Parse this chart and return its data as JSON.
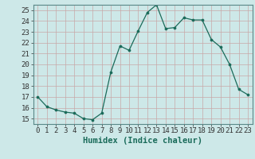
{
  "x": [
    0,
    1,
    2,
    3,
    4,
    5,
    6,
    7,
    8,
    9,
    10,
    11,
    12,
    13,
    14,
    15,
    16,
    17,
    18,
    19,
    20,
    21,
    22,
    23
  ],
  "y": [
    17.0,
    16.1,
    15.8,
    15.6,
    15.5,
    15.0,
    14.9,
    15.5,
    19.3,
    21.7,
    21.3,
    23.1,
    24.8,
    25.5,
    23.3,
    23.4,
    24.3,
    24.1,
    24.1,
    22.3,
    21.6,
    20.0,
    17.7,
    17.2
  ],
  "line_color": "#1a6b5a",
  "marker": "o",
  "marker_size": 2.2,
  "bg_color": "#cde8e8",
  "grid_major_color": "#b8d0d0",
  "grid_minor_color": "#d8ecec",
  "xlabel": "Humidex (Indice chaleur)",
  "xlim": [
    -0.5,
    23.5
  ],
  "ylim": [
    14.5,
    25.5
  ],
  "yticks": [
    15,
    16,
    17,
    18,
    19,
    20,
    21,
    22,
    23,
    24,
    25
  ],
  "xticks": [
    0,
    1,
    2,
    3,
    4,
    5,
    6,
    7,
    8,
    9,
    10,
    11,
    12,
    13,
    14,
    15,
    16,
    17,
    18,
    19,
    20,
    21,
    22,
    23
  ],
  "tick_label_fontsize": 6.5,
  "xlabel_fontsize": 7.5
}
